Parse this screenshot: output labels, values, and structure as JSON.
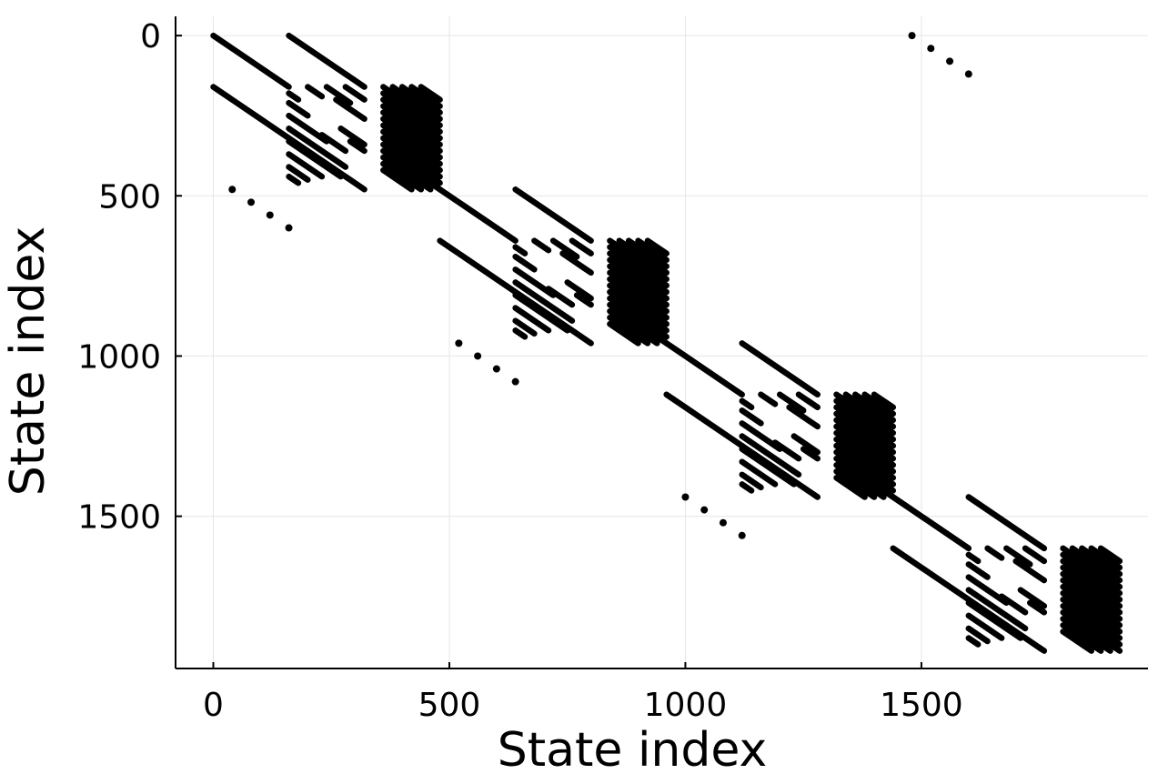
{
  "chart_data": {
    "type": "scatter",
    "title": "",
    "xlabel": "State index",
    "ylabel": "State index",
    "xlim": [
      -80,
      1980
    ],
    "ylim": [
      -60,
      1975
    ],
    "y_inverted": true,
    "grid": true,
    "legend": "none",
    "x_ticks": [
      0,
      500,
      1000,
      1500
    ],
    "y_ticks": [
      0,
      500,
      1000,
      1500
    ],
    "x_tick_labels": [
      "0",
      "500",
      "1000",
      "1500"
    ],
    "y_tick_labels": [
      "0",
      "500",
      "1000",
      "1500"
    ],
    "marker_color": "#000000",
    "series": [
      {
        "description": "main diagonal segments",
        "segments": [
          [
            0,
            0,
            160,
            160
          ],
          [
            480,
            480,
            640,
            640
          ],
          [
            960,
            960,
            1120,
            1120
          ],
          [
            1440,
            1440,
            1600,
            1600
          ]
        ]
      },
      {
        "description": "long off-diagonal bands",
        "segments": [
          [
            160,
            0,
            320,
            160
          ],
          [
            0,
            160,
            160,
            320
          ],
          [
            160,
            320,
            320,
            480
          ],
          [
            640,
            480,
            800,
            640
          ],
          [
            480,
            640,
            640,
            800
          ],
          [
            640,
            800,
            800,
            960
          ],
          [
            1120,
            960,
            1280,
            1120
          ],
          [
            960,
            1120,
            1120,
            1280
          ],
          [
            1120,
            1280,
            1280,
            1440
          ],
          [
            1600,
            1440,
            1760,
            1600
          ],
          [
            1440,
            1600,
            1600,
            1760
          ],
          [
            1600,
            1760,
            1760,
            1920
          ]
        ]
      },
      {
        "description": "short stripe segments block A (cols 160-320)",
        "segments": [
          [
            160,
            180,
            180,
            200
          ],
          [
            160,
            210,
            200,
            250
          ],
          [
            160,
            250,
            240,
            330
          ],
          [
            160,
            290,
            280,
            410
          ],
          [
            160,
            330,
            270,
            440
          ],
          [
            160,
            370,
            230,
            440
          ],
          [
            160,
            410,
            200,
            450
          ],
          [
            160,
            440,
            180,
            460
          ],
          [
            200,
            160,
            230,
            190
          ],
          [
            240,
            160,
            290,
            210
          ],
          [
            280,
            160,
            320,
            200
          ],
          [
            260,
            200,
            320,
            260
          ],
          [
            270,
            290,
            320,
            340
          ],
          [
            230,
            310,
            280,
            360
          ],
          [
            290,
            330,
            320,
            360
          ],
          [
            640,
            660,
            660,
            680
          ],
          [
            640,
            690,
            680,
            730
          ],
          [
            640,
            730,
            720,
            810
          ],
          [
            640,
            770,
            760,
            890
          ],
          [
            640,
            810,
            750,
            920
          ],
          [
            640,
            850,
            710,
            920
          ],
          [
            640,
            890,
            680,
            930
          ],
          [
            640,
            920,
            660,
            940
          ],
          [
            680,
            640,
            710,
            670
          ],
          [
            720,
            640,
            770,
            690
          ],
          [
            760,
            640,
            800,
            680
          ],
          [
            740,
            680,
            800,
            740
          ],
          [
            750,
            770,
            800,
            820
          ],
          [
            710,
            790,
            760,
            840
          ],
          [
            770,
            810,
            800,
            840
          ],
          [
            1120,
            1140,
            1140,
            1160
          ],
          [
            1120,
            1170,
            1160,
            1210
          ],
          [
            1120,
            1210,
            1200,
            1290
          ],
          [
            1120,
            1250,
            1240,
            1370
          ],
          [
            1120,
            1290,
            1230,
            1400
          ],
          [
            1120,
            1330,
            1190,
            1400
          ],
          [
            1120,
            1370,
            1160,
            1410
          ],
          [
            1120,
            1400,
            1140,
            1420
          ],
          [
            1160,
            1120,
            1190,
            1150
          ],
          [
            1200,
            1120,
            1250,
            1170
          ],
          [
            1240,
            1120,
            1280,
            1160
          ],
          [
            1220,
            1160,
            1280,
            1220
          ],
          [
            1230,
            1250,
            1280,
            1300
          ],
          [
            1190,
            1270,
            1240,
            1320
          ],
          [
            1250,
            1290,
            1280,
            1320
          ],
          [
            1600,
            1620,
            1620,
            1640
          ],
          [
            1600,
            1650,
            1640,
            1690
          ],
          [
            1600,
            1690,
            1680,
            1770
          ],
          [
            1600,
            1730,
            1720,
            1850
          ],
          [
            1600,
            1770,
            1710,
            1880
          ],
          [
            1600,
            1810,
            1670,
            1880
          ],
          [
            1600,
            1850,
            1640,
            1890
          ],
          [
            1600,
            1880,
            1620,
            1900
          ],
          [
            1640,
            1600,
            1670,
            1630
          ],
          [
            1680,
            1600,
            1730,
            1650
          ],
          [
            1720,
            1600,
            1760,
            1640
          ],
          [
            1700,
            1640,
            1760,
            1700
          ],
          [
            1710,
            1730,
            1760,
            1780
          ],
          [
            1670,
            1750,
            1720,
            1800
          ],
          [
            1730,
            1770,
            1760,
            1800
          ]
        ]
      },
      {
        "description": "dense stripe blocks",
        "segments": [
          [
            360,
            160,
            480,
            280
          ],
          [
            360,
            180,
            480,
            300
          ],
          [
            360,
            200,
            480,
            320
          ],
          [
            360,
            220,
            480,
            340
          ],
          [
            360,
            240,
            480,
            360
          ],
          [
            360,
            260,
            480,
            380
          ],
          [
            360,
            280,
            480,
            400
          ],
          [
            360,
            300,
            480,
            420
          ],
          [
            360,
            320,
            480,
            440
          ],
          [
            360,
            340,
            480,
            460
          ],
          [
            360,
            360,
            480,
            480
          ],
          [
            380,
            160,
            480,
            260
          ],
          [
            400,
            160,
            480,
            240
          ],
          [
            420,
            160,
            480,
            220
          ],
          [
            440,
            160,
            480,
            200
          ],
          [
            360,
            380,
            460,
            480
          ],
          [
            360,
            400,
            440,
            480
          ],
          [
            360,
            420,
            420,
            480
          ],
          [
            840,
            640,
            960,
            760
          ],
          [
            840,
            660,
            960,
            780
          ],
          [
            840,
            680,
            960,
            800
          ],
          [
            840,
            700,
            960,
            820
          ],
          [
            840,
            720,
            960,
            840
          ],
          [
            840,
            740,
            960,
            860
          ],
          [
            840,
            760,
            960,
            880
          ],
          [
            840,
            780,
            960,
            900
          ],
          [
            840,
            800,
            960,
            920
          ],
          [
            840,
            820,
            960,
            940
          ],
          [
            840,
            840,
            960,
            960
          ],
          [
            860,
            640,
            960,
            740
          ],
          [
            880,
            640,
            960,
            720
          ],
          [
            900,
            640,
            960,
            700
          ],
          [
            920,
            640,
            960,
            680
          ],
          [
            840,
            860,
            940,
            960
          ],
          [
            840,
            880,
            920,
            960
          ],
          [
            840,
            900,
            900,
            960
          ],
          [
            1320,
            1120,
            1440,
            1240
          ],
          [
            1320,
            1140,
            1440,
            1260
          ],
          [
            1320,
            1160,
            1440,
            1280
          ],
          [
            1320,
            1180,
            1440,
            1300
          ],
          [
            1320,
            1200,
            1440,
            1320
          ],
          [
            1320,
            1220,
            1440,
            1340
          ],
          [
            1320,
            1240,
            1440,
            1360
          ],
          [
            1320,
            1260,
            1440,
            1380
          ],
          [
            1320,
            1280,
            1440,
            1400
          ],
          [
            1320,
            1300,
            1440,
            1420
          ],
          [
            1320,
            1320,
            1440,
            1440
          ],
          [
            1340,
            1120,
            1440,
            1220
          ],
          [
            1360,
            1120,
            1440,
            1200
          ],
          [
            1380,
            1120,
            1440,
            1180
          ],
          [
            1400,
            1120,
            1440,
            1160
          ],
          [
            1320,
            1340,
            1420,
            1440
          ],
          [
            1320,
            1360,
            1400,
            1440
          ],
          [
            1320,
            1380,
            1380,
            1440
          ],
          [
            1800,
            1600,
            1920,
            1720
          ],
          [
            1800,
            1620,
            1920,
            1740
          ],
          [
            1800,
            1640,
            1920,
            1760
          ],
          [
            1800,
            1660,
            1920,
            1780
          ],
          [
            1800,
            1680,
            1920,
            1800
          ],
          [
            1800,
            1700,
            1920,
            1820
          ],
          [
            1800,
            1720,
            1920,
            1840
          ],
          [
            1800,
            1740,
            1920,
            1860
          ],
          [
            1800,
            1760,
            1920,
            1880
          ],
          [
            1800,
            1780,
            1920,
            1900
          ],
          [
            1800,
            1800,
            1920,
            1920
          ],
          [
            1820,
            1600,
            1920,
            1700
          ],
          [
            1840,
            1600,
            1920,
            1680
          ],
          [
            1860,
            1600,
            1920,
            1660
          ],
          [
            1880,
            1600,
            1920,
            1640
          ],
          [
            1800,
            1820,
            1900,
            1920
          ],
          [
            1800,
            1840,
            1880,
            1920
          ],
          [
            1800,
            1860,
            1860,
            1920
          ]
        ]
      },
      {
        "description": "isolated dots",
        "points": [
          [
            40,
            480
          ],
          [
            80,
            520
          ],
          [
            120,
            560
          ],
          [
            160,
            600
          ],
          [
            520,
            960
          ],
          [
            560,
            1000
          ],
          [
            600,
            1040
          ],
          [
            640,
            1080
          ],
          [
            1000,
            1440
          ],
          [
            1040,
            1480
          ],
          [
            1080,
            1520
          ],
          [
            1120,
            1560
          ],
          [
            1480,
            0
          ],
          [
            1520,
            40
          ],
          [
            1560,
            80
          ],
          [
            1600,
            120
          ]
        ]
      }
    ]
  }
}
